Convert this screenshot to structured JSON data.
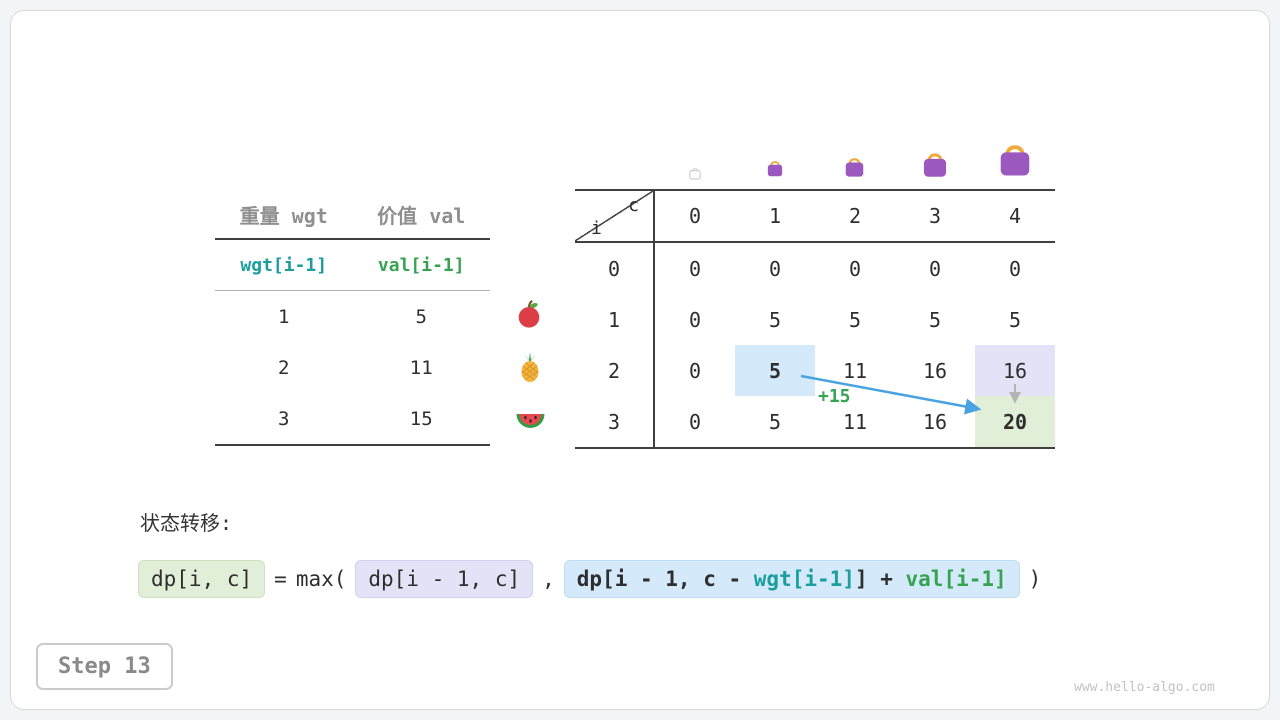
{
  "page": {
    "step_label": "Step 13",
    "watermark": "www.hello-algo.com",
    "transition_label": "状态转移:"
  },
  "left_table": {
    "header": [
      "重量 wgt",
      "价值 val"
    ],
    "symbol_row": [
      "wgt[i-1]",
      "val[i-1]"
    ],
    "rows": [
      [
        "1",
        "5"
      ],
      [
        "2",
        "11"
      ],
      [
        "3",
        "15"
      ]
    ],
    "row_icons": [
      "apple-icon",
      "pineapple-icon",
      "watermelon-icon"
    ]
  },
  "dp_table": {
    "corner": {
      "top_right": "c",
      "bottom_left": "i"
    },
    "col_headers": [
      "0",
      "1",
      "2",
      "3",
      "4"
    ],
    "row_headers": [
      "0",
      "1",
      "2",
      "3"
    ],
    "values": [
      [
        "0",
        "0",
        "0",
        "0",
        "0"
      ],
      [
        "0",
        "5",
        "5",
        "5",
        "5"
      ],
      [
        "0",
        "5",
        "11",
        "16",
        "16"
      ],
      [
        "0",
        "5",
        "11",
        "16",
        "20"
      ]
    ],
    "highlights": [
      {
        "row": 2,
        "col": 1,
        "style": "blue",
        "bold": true
      },
      {
        "row": 2,
        "col": 4,
        "style": "purple",
        "bold": false
      },
      {
        "row": 3,
        "col": 4,
        "style": "green",
        "bold": true
      }
    ],
    "annotation": "+15",
    "bag_icons": [
      "bag-ghost-icon",
      "bag-small-icon",
      "bag-medium-icon",
      "bag-large-icon",
      "bag-xlarge-icon"
    ]
  },
  "formula": {
    "lhs": "dp[i, c]",
    "op_equals": "=",
    "op_max": "max(",
    "arg1": "dp[i - 1, c]",
    "op_comma": ",",
    "arg2_prefix": "dp[i - 1, c - ",
    "arg2_wgt": "wgt[i-1]",
    "arg2_mid": "] + ",
    "arg2_val": "val[i-1]",
    "op_close": ")"
  },
  "colors": {
    "teal": "#1a9e9e",
    "green": "#36a352",
    "arrow_blue": "#4aa3e0",
    "arrow_gray": "#b3b3b3",
    "hl_blue": "#d4e9f9",
    "hl_purple": "#e3e2f6",
    "hl_green": "#e1efd8"
  }
}
